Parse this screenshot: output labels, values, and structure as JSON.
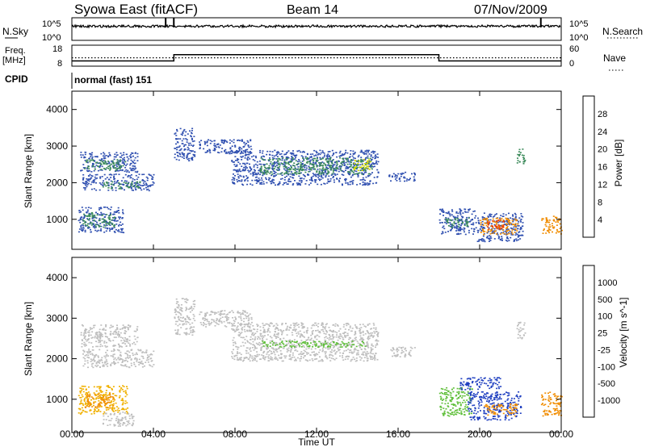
{
  "header": {
    "title": "Syowa East (fitACF)",
    "beam": "Beam 14",
    "date": "07/Nov/2009"
  },
  "nsky": {
    "label": "N.Sky",
    "tick_top": "10^5",
    "tick_bottom": "10^0",
    "right_label": "N.Search",
    "right_tick_top": "10^5",
    "right_tick_bottom": "10^0"
  },
  "freq": {
    "label_line1": "Freq.",
    "label_line2": "[MHz]",
    "tick_top": "18",
    "tick_bottom": "8",
    "right_label": "Nave",
    "right_tick_top": "60",
    "right_tick_bottom": "0",
    "freq_steps_utc": [
      {
        "start": 0,
        "end": 5,
        "mhz": 10.5
      },
      {
        "start": 5,
        "end": 18,
        "mhz": 13.5
      },
      {
        "start": 18,
        "end": 24,
        "mhz": 10.5
      }
    ],
    "nave_dotted_value": 24
  },
  "cpid": {
    "label": "CPID",
    "mode": "normal (fast) 151"
  },
  "axes": {
    "ylabel": "Slant Range [km]",
    "xlabel": "Time UT",
    "yticks": [
      "1000",
      "2000",
      "3000",
      "4000"
    ],
    "ytick_values": [
      1000,
      2000,
      3000,
      4000
    ],
    "xticks": [
      "00:00",
      "04:00",
      "08:00",
      "12:00",
      "16:00",
      "20:00",
      "00:00"
    ],
    "xtick_hours": [
      0,
      4,
      8,
      12,
      16,
      20,
      24
    ],
    "ylim": [
      180,
      4500
    ],
    "xlim": [
      0,
      24
    ]
  },
  "chart_data": [
    {
      "type": "heatmap",
      "title": "",
      "xlabel": "",
      "ylabel": "Slant Range [km]",
      "colorbar_label": "Power [dB]",
      "colorbar_ticks": [
        "4",
        "8",
        "12",
        "16",
        "20",
        "24",
        "28"
      ],
      "colorbar_colors": [
        "#0000ff",
        "#2f4fb0",
        "#3b8a5a",
        "#5fbf3a",
        "#d8d800",
        "#f08c00",
        "#f04000",
        "#ff0000"
      ],
      "regions": [
        {
          "t0": 0.4,
          "t1": 3.2,
          "r0": 2300,
          "r1": 2850,
          "color": "#2f4fb0"
        },
        {
          "t0": 0.6,
          "t1": 2.6,
          "r0": 2350,
          "r1": 2650,
          "color": "#3b8a5a"
        },
        {
          "t0": 0.5,
          "t1": 4.0,
          "r0": 1800,
          "r1": 2250,
          "color": "#2f4fb0"
        },
        {
          "t0": 1.5,
          "t1": 3.4,
          "r0": 1850,
          "r1": 2050,
          "color": "#3b8a5a"
        },
        {
          "t0": 0.3,
          "t1": 2.5,
          "r0": 650,
          "r1": 1350,
          "color": "#2f4fb0"
        },
        {
          "t0": 0.5,
          "t1": 2.1,
          "r0": 800,
          "r1": 1200,
          "color": "#3b8a5a"
        },
        {
          "t0": 5.0,
          "t1": 6.0,
          "r0": 2600,
          "r1": 3500,
          "color": "#2f4fb0"
        },
        {
          "t0": 6.2,
          "t1": 8.8,
          "r0": 2800,
          "r1": 3200,
          "color": "#2f4fb0"
        },
        {
          "t0": 7.8,
          "t1": 15.0,
          "r0": 1950,
          "r1": 2900,
          "color": "#2f4fb0"
        },
        {
          "t0": 9.2,
          "t1": 14.7,
          "r0": 2250,
          "r1": 2700,
          "color": "#3b8a5a"
        },
        {
          "t0": 13.8,
          "t1": 14.6,
          "r0": 2350,
          "r1": 2650,
          "color": "#d8d800"
        },
        {
          "t0": 15.5,
          "t1": 16.8,
          "r0": 2050,
          "r1": 2300,
          "color": "#2f4fb0"
        },
        {
          "t0": 18.0,
          "t1": 19.8,
          "r0": 600,
          "r1": 1300,
          "color": "#2f4fb0"
        },
        {
          "t0": 18.3,
          "t1": 19.5,
          "r0": 800,
          "r1": 1050,
          "color": "#3b8a5a"
        },
        {
          "t0": 19.8,
          "t1": 22.1,
          "r0": 400,
          "r1": 1200,
          "color": "#2f4fb0"
        },
        {
          "t0": 20.0,
          "t1": 21.9,
          "r0": 600,
          "r1": 1050,
          "color": "#f08c00"
        },
        {
          "t0": 20.3,
          "t1": 21.2,
          "r0": 750,
          "r1": 1000,
          "color": "#f04000"
        },
        {
          "t0": 21.8,
          "t1": 22.2,
          "r0": 2500,
          "r1": 2950,
          "color": "#3b8a5a"
        },
        {
          "t0": 23.0,
          "t1": 24.0,
          "r0": 600,
          "r1": 1100,
          "color": "#f08c00"
        }
      ]
    },
    {
      "type": "heatmap",
      "title": "",
      "xlabel": "Time UT",
      "ylabel": "Slant Range [km]",
      "colorbar_label": "Velocity [m s^-1]",
      "colorbar_ticks": [
        "1000",
        "500",
        "100",
        "25",
        "-25",
        "-100",
        "-500",
        "-1000"
      ],
      "colorbar_colors": [
        "#2040c0",
        "#2f4fb0",
        "#3b8a5a",
        "#5fbf3a",
        "#bebebe",
        "#f0b000",
        "#f08c00",
        "#f04000",
        "#ff0000"
      ],
      "regions": [
        {
          "t0": 0.4,
          "t1": 3.2,
          "r0": 2300,
          "r1": 2850,
          "color": "#bebebe"
        },
        {
          "t0": 0.5,
          "t1": 4.0,
          "r0": 1800,
          "r1": 2250,
          "color": "#bebebe"
        },
        {
          "t0": 0.3,
          "t1": 2.7,
          "r0": 650,
          "r1": 1350,
          "color": "#f0b000"
        },
        {
          "t0": 0.6,
          "t1": 2.0,
          "r0": 800,
          "r1": 1150,
          "color": "#f08c00"
        },
        {
          "t0": 1.5,
          "t1": 3.0,
          "r0": 350,
          "r1": 700,
          "color": "#bebebe"
        },
        {
          "t0": 5.0,
          "t1": 6.0,
          "r0": 2600,
          "r1": 3500,
          "color": "#bebebe"
        },
        {
          "t0": 6.2,
          "t1": 8.8,
          "r0": 2800,
          "r1": 3200,
          "color": "#bebebe"
        },
        {
          "t0": 7.8,
          "t1": 15.0,
          "r0": 1950,
          "r1": 2900,
          "color": "#bebebe"
        },
        {
          "t0": 9.2,
          "t1": 14.5,
          "r0": 2300,
          "r1": 2450,
          "color": "#5fbf3a"
        },
        {
          "t0": 15.5,
          "t1": 16.8,
          "r0": 2050,
          "r1": 2300,
          "color": "#bebebe"
        },
        {
          "t0": 18.0,
          "t1": 19.6,
          "r0": 600,
          "r1": 1300,
          "color": "#5fbf3a"
        },
        {
          "t0": 19.4,
          "t1": 22.0,
          "r0": 500,
          "r1": 1200,
          "color": "#2040c0"
        },
        {
          "t0": 20.2,
          "t1": 21.8,
          "r0": 600,
          "r1": 900,
          "color": "#f08c00"
        },
        {
          "t0": 19.0,
          "t1": 21.0,
          "r0": 1250,
          "r1": 1550,
          "color": "#2040c0"
        },
        {
          "t0": 21.8,
          "t1": 22.2,
          "r0": 2500,
          "r1": 2950,
          "color": "#bebebe"
        },
        {
          "t0": 23.0,
          "t1": 24.0,
          "r0": 600,
          "r1": 1200,
          "color": "#f08c00"
        }
      ]
    }
  ]
}
